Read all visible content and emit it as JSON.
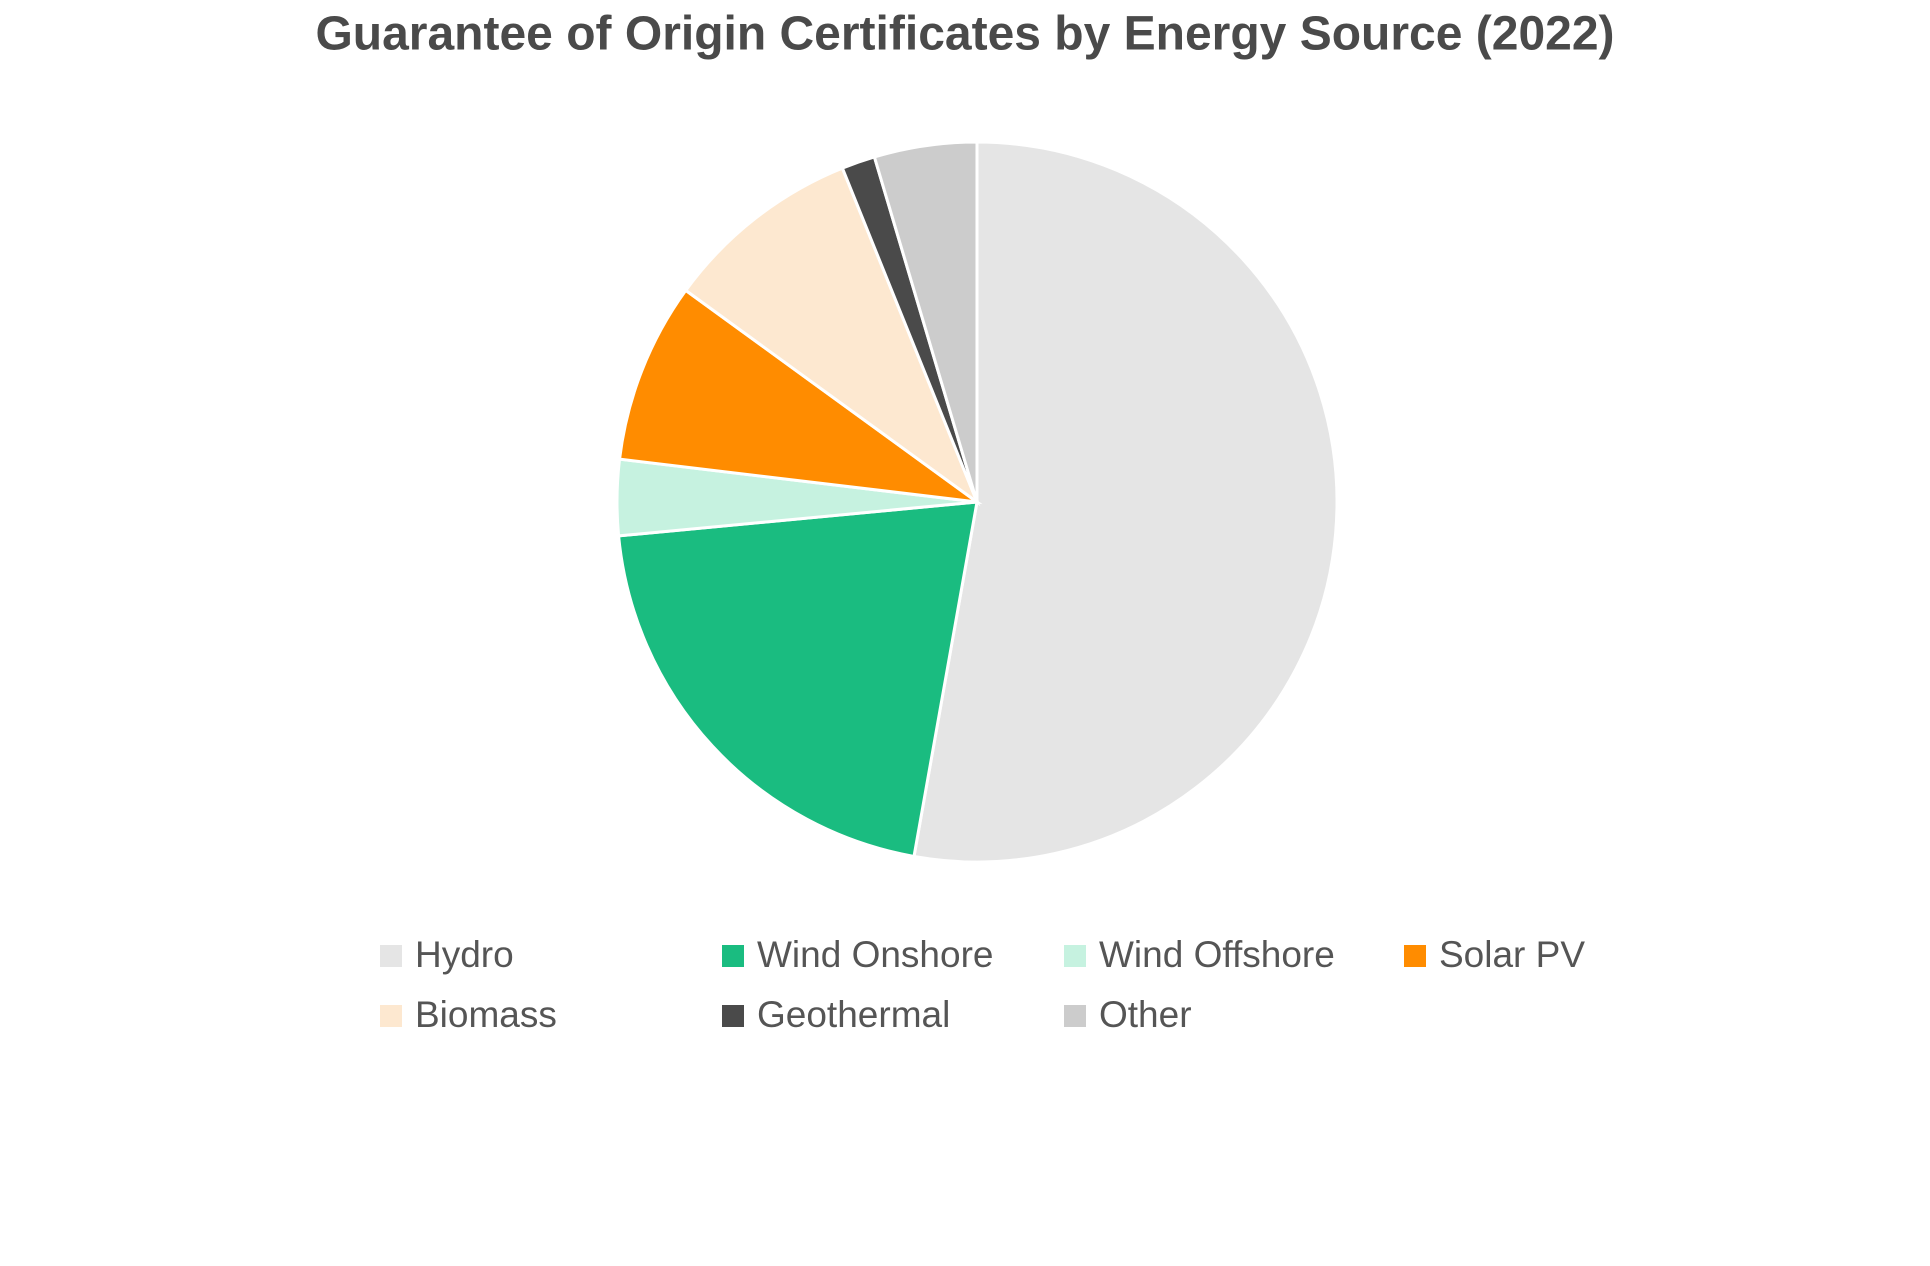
{
  "chart_data": {
    "type": "pie",
    "title": "Guarantee of Origin Certificates by Energy Source (2022)",
    "categories": [
      "Hydro",
      "Wind Onshore",
      "Wind Offshore",
      "Solar PV",
      "Biomass",
      "Geothermal",
      "Other"
    ],
    "values": [
      52.8,
      20.7,
      3.4,
      8.1,
      8.9,
      1.5,
      4.6
    ],
    "colors": [
      "#e5e5e5",
      "#1abc80",
      "#c6f2e0",
      "#ff8c00",
      "#fde8d0",
      "#4a4a4a",
      "#cccccc"
    ],
    "legend": "bottom"
  }
}
